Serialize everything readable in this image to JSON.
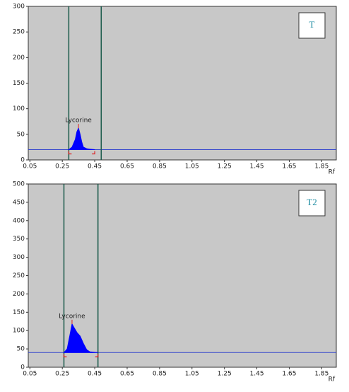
{
  "chart_data": [
    {
      "type": "area",
      "label": "T",
      "x_label": "Rf",
      "xlim": [
        0.04,
        1.94
      ],
      "xticks": [
        0.05,
        0.25,
        0.45,
        0.65,
        0.85,
        1.05,
        1.25,
        1.45,
        1.65,
        1.85
      ],
      "ylim": [
        0,
        300
      ],
      "yticks": [
        0,
        50,
        100,
        150,
        200,
        250,
        300
      ],
      "baseline": 20,
      "markers": [
        0.29,
        0.49
      ],
      "annotation": {
        "text": "Lycorine",
        "x": 0.35,
        "y": 62
      },
      "series": [
        {
          "color": "#0000ff",
          "x": [
            0.29,
            0.31,
            0.33,
            0.34,
            0.35,
            0.36,
            0.37,
            0.38,
            0.4,
            0.42,
            0.45
          ],
          "values": [
            20,
            25,
            40,
            55,
            62,
            50,
            35,
            25,
            22,
            21,
            20
          ]
        }
      ]
    },
    {
      "type": "area",
      "label": "T2",
      "x_label": "Rf",
      "xlim": [
        0.04,
        1.94
      ],
      "xticks": [
        0.05,
        0.25,
        0.45,
        0.65,
        0.85,
        1.05,
        1.25,
        1.45,
        1.65,
        1.85
      ],
      "ylim": [
        0,
        500
      ],
      "yticks": [
        0,
        50,
        100,
        150,
        200,
        250,
        300,
        350,
        400,
        450,
        500
      ],
      "baseline": 40,
      "markers": [
        0.26,
        0.47
      ],
      "annotation": {
        "text": "Lycorine",
        "x": 0.31,
        "y": 118
      },
      "series": [
        {
          "color": "#0000ff",
          "x": [
            0.26,
            0.28,
            0.3,
            0.31,
            0.32,
            0.34,
            0.36,
            0.38,
            0.4,
            0.42,
            0.47
          ],
          "values": [
            40,
            50,
            95,
            118,
            110,
            95,
            85,
            65,
            48,
            42,
            40
          ]
        }
      ]
    }
  ]
}
